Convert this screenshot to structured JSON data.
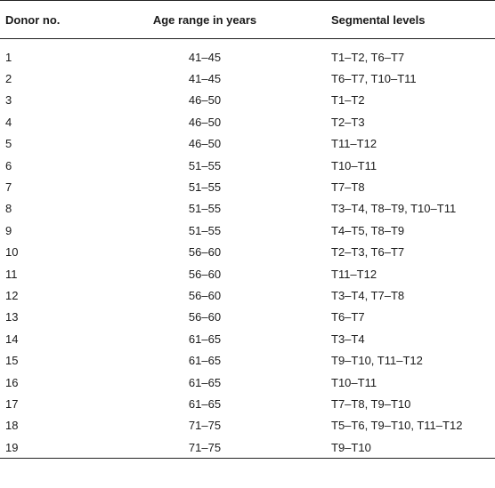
{
  "table": {
    "headers": {
      "donor": "Donor no.",
      "age": "Age range in years",
      "segments": "Segmental levels"
    },
    "rows": [
      {
        "donor": "1",
        "age": "41–45",
        "segments": "T1–T2, T6–T7"
      },
      {
        "donor": "2",
        "age": "41–45",
        "segments": "T6–T7, T10–T11"
      },
      {
        "donor": "3",
        "age": "46–50",
        "segments": "T1–T2"
      },
      {
        "donor": "4",
        "age": "46–50",
        "segments": "T2–T3"
      },
      {
        "donor": "5",
        "age": "46–50",
        "segments": "T11–T12"
      },
      {
        "donor": "6",
        "age": "51–55",
        "segments": "T10–T11"
      },
      {
        "donor": "7",
        "age": "51–55",
        "segments": "T7–T8"
      },
      {
        "donor": "8",
        "age": "51–55",
        "segments": "T3–T4, T8–T9, T10–T11"
      },
      {
        "donor": "9",
        "age": "51–55",
        "segments": "T4–T5, T8–T9"
      },
      {
        "donor": "10",
        "age": "56–60",
        "segments": "T2–T3, T6–T7"
      },
      {
        "donor": "11",
        "age": "56–60",
        "segments": "T11–T12"
      },
      {
        "donor": "12",
        "age": "56–60",
        "segments": "T3–T4, T7–T8"
      },
      {
        "donor": "13",
        "age": "56–60",
        "segments": "T6–T7"
      },
      {
        "donor": "14",
        "age": "61–65",
        "segments": "T3–T4"
      },
      {
        "donor": "15",
        "age": "61–65",
        "segments": "T9–T10, T11–T12"
      },
      {
        "donor": "16",
        "age": "61–65",
        "segments": "T10–T11"
      },
      {
        "donor": "17",
        "age": "61–65",
        "segments": "T7–T8, T9–T10"
      },
      {
        "donor": "18",
        "age": "71–75",
        "segments": "T5–T6, T9–T10, T11–T12"
      },
      {
        "donor": "19",
        "age": "71–75",
        "segments": "T9–T10"
      }
    ]
  }
}
